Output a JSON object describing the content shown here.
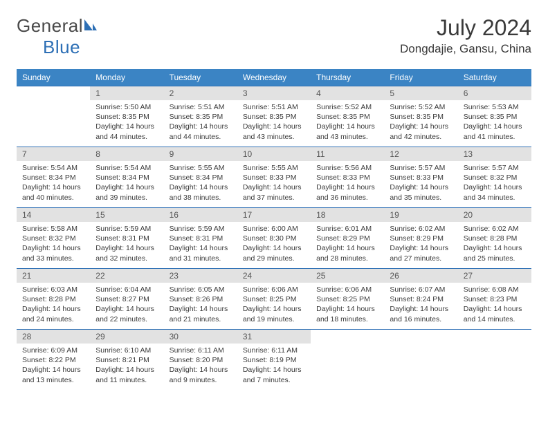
{
  "logo": {
    "text_left": "General",
    "text_right": "Blue"
  },
  "header": {
    "title": "July 2024",
    "location": "Dongdajie, Gansu, China"
  },
  "colors": {
    "header_bg": "#3b84c4",
    "header_fg": "#ffffff",
    "daynum_bg": "#e2e2e2",
    "rule": "#2d6fb5",
    "text": "#3a3a3a",
    "page_bg": "#ffffff"
  },
  "typography": {
    "title_fontsize": 32,
    "location_fontsize": 17,
    "weekday_fontsize": 12,
    "daynum_fontsize": 12,
    "body_fontsize": 10.5
  },
  "layout": {
    "columns": 7,
    "rows": 5,
    "first_day_offset": 1
  },
  "weekdays": [
    "Sunday",
    "Monday",
    "Tuesday",
    "Wednesday",
    "Thursday",
    "Friday",
    "Saturday"
  ],
  "days": [
    {
      "d": 1,
      "sunrise": "5:50 AM",
      "sunset": "8:35 PM",
      "daylight": "14 hours and 44 minutes."
    },
    {
      "d": 2,
      "sunrise": "5:51 AM",
      "sunset": "8:35 PM",
      "daylight": "14 hours and 44 minutes."
    },
    {
      "d": 3,
      "sunrise": "5:51 AM",
      "sunset": "8:35 PM",
      "daylight": "14 hours and 43 minutes."
    },
    {
      "d": 4,
      "sunrise": "5:52 AM",
      "sunset": "8:35 PM",
      "daylight": "14 hours and 43 minutes."
    },
    {
      "d": 5,
      "sunrise": "5:52 AM",
      "sunset": "8:35 PM",
      "daylight": "14 hours and 42 minutes."
    },
    {
      "d": 6,
      "sunrise": "5:53 AM",
      "sunset": "8:35 PM",
      "daylight": "14 hours and 41 minutes."
    },
    {
      "d": 7,
      "sunrise": "5:54 AM",
      "sunset": "8:34 PM",
      "daylight": "14 hours and 40 minutes."
    },
    {
      "d": 8,
      "sunrise": "5:54 AM",
      "sunset": "8:34 PM",
      "daylight": "14 hours and 39 minutes."
    },
    {
      "d": 9,
      "sunrise": "5:55 AM",
      "sunset": "8:34 PM",
      "daylight": "14 hours and 38 minutes."
    },
    {
      "d": 10,
      "sunrise": "5:55 AM",
      "sunset": "8:33 PM",
      "daylight": "14 hours and 37 minutes."
    },
    {
      "d": 11,
      "sunrise": "5:56 AM",
      "sunset": "8:33 PM",
      "daylight": "14 hours and 36 minutes."
    },
    {
      "d": 12,
      "sunrise": "5:57 AM",
      "sunset": "8:33 PM",
      "daylight": "14 hours and 35 minutes."
    },
    {
      "d": 13,
      "sunrise": "5:57 AM",
      "sunset": "8:32 PM",
      "daylight": "14 hours and 34 minutes."
    },
    {
      "d": 14,
      "sunrise": "5:58 AM",
      "sunset": "8:32 PM",
      "daylight": "14 hours and 33 minutes."
    },
    {
      "d": 15,
      "sunrise": "5:59 AM",
      "sunset": "8:31 PM",
      "daylight": "14 hours and 32 minutes."
    },
    {
      "d": 16,
      "sunrise": "5:59 AM",
      "sunset": "8:31 PM",
      "daylight": "14 hours and 31 minutes."
    },
    {
      "d": 17,
      "sunrise": "6:00 AM",
      "sunset": "8:30 PM",
      "daylight": "14 hours and 29 minutes."
    },
    {
      "d": 18,
      "sunrise": "6:01 AM",
      "sunset": "8:29 PM",
      "daylight": "14 hours and 28 minutes."
    },
    {
      "d": 19,
      "sunrise": "6:02 AM",
      "sunset": "8:29 PM",
      "daylight": "14 hours and 27 minutes."
    },
    {
      "d": 20,
      "sunrise": "6:02 AM",
      "sunset": "8:28 PM",
      "daylight": "14 hours and 25 minutes."
    },
    {
      "d": 21,
      "sunrise": "6:03 AM",
      "sunset": "8:28 PM",
      "daylight": "14 hours and 24 minutes."
    },
    {
      "d": 22,
      "sunrise": "6:04 AM",
      "sunset": "8:27 PM",
      "daylight": "14 hours and 22 minutes."
    },
    {
      "d": 23,
      "sunrise": "6:05 AM",
      "sunset": "8:26 PM",
      "daylight": "14 hours and 21 minutes."
    },
    {
      "d": 24,
      "sunrise": "6:06 AM",
      "sunset": "8:25 PM",
      "daylight": "14 hours and 19 minutes."
    },
    {
      "d": 25,
      "sunrise": "6:06 AM",
      "sunset": "8:25 PM",
      "daylight": "14 hours and 18 minutes."
    },
    {
      "d": 26,
      "sunrise": "6:07 AM",
      "sunset": "8:24 PM",
      "daylight": "14 hours and 16 minutes."
    },
    {
      "d": 27,
      "sunrise": "6:08 AM",
      "sunset": "8:23 PM",
      "daylight": "14 hours and 14 minutes."
    },
    {
      "d": 28,
      "sunrise": "6:09 AM",
      "sunset": "8:22 PM",
      "daylight": "14 hours and 13 minutes."
    },
    {
      "d": 29,
      "sunrise": "6:10 AM",
      "sunset": "8:21 PM",
      "daylight": "14 hours and 11 minutes."
    },
    {
      "d": 30,
      "sunrise": "6:11 AM",
      "sunset": "8:20 PM",
      "daylight": "14 hours and 9 minutes."
    },
    {
      "d": 31,
      "sunrise": "6:11 AM",
      "sunset": "8:19 PM",
      "daylight": "14 hours and 7 minutes."
    }
  ],
  "labels": {
    "sunrise": "Sunrise:",
    "sunset": "Sunset:",
    "daylight": "Daylight:"
  }
}
